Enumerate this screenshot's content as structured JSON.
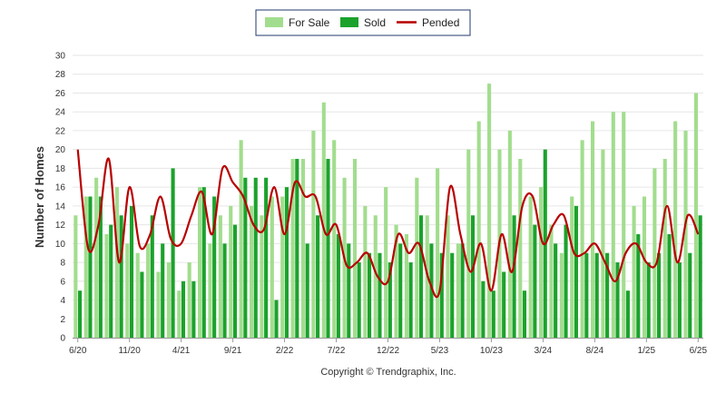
{
  "chart_data": {
    "type": "bar",
    "ylabel": "Number of Homes",
    "ylim": [
      0,
      30
    ],
    "yticks": [
      0,
      2,
      4,
      6,
      8,
      10,
      12,
      14,
      16,
      18,
      20,
      22,
      24,
      26,
      28,
      30
    ],
    "grid": true,
    "legend_placement": "top-center",
    "x_tick_labels": [
      "6/20",
      "11/20",
      "4/21",
      "9/21",
      "2/22",
      "7/22",
      "12/22",
      "5/23",
      "10/23",
      "3/24",
      "8/24",
      "1/25",
      "6/25"
    ],
    "x_tick_indices": [
      0,
      5,
      10,
      15,
      20,
      25,
      30,
      35,
      40,
      45,
      50,
      55,
      60
    ],
    "categories": [
      "6/20",
      "7/20",
      "8/20",
      "9/20",
      "10/20",
      "11/20",
      "12/20",
      "1/21",
      "2/21",
      "3/21",
      "4/21",
      "5/21",
      "6/21",
      "7/21",
      "8/21",
      "9/21",
      "10/21",
      "11/21",
      "12/21",
      "1/22",
      "2/22",
      "3/22",
      "4/22",
      "5/22",
      "6/22",
      "7/22",
      "8/22",
      "9/22",
      "10/22",
      "11/22",
      "12/22",
      "1/23",
      "2/23",
      "3/23",
      "4/23",
      "5/23",
      "6/23",
      "7/23",
      "8/23",
      "9/23",
      "10/23",
      "11/23",
      "12/23",
      "1/24",
      "2/24",
      "3/24",
      "4/24",
      "5/24",
      "6/24",
      "7/24",
      "8/24",
      "9/24",
      "10/24",
      "11/24",
      "12/24",
      "1/25",
      "2/25",
      "3/25",
      "4/25",
      "5/25",
      "6/25"
    ],
    "series": [
      {
        "name": "For Sale",
        "kind": "bar",
        "color": "#a2dd8e",
        "values": [
          13,
          15,
          17,
          11,
          16,
          10,
          9,
          10,
          7,
          8,
          5,
          8,
          16,
          10,
          13,
          14,
          21,
          14,
          13,
          15,
          15,
          19,
          19,
          22,
          25,
          21,
          17,
          19,
          14,
          13,
          16,
          12,
          11,
          17,
          13,
          18,
          13,
          10,
          20,
          23,
          27,
          20,
          22,
          19,
          15,
          16,
          12,
          9,
          15,
          21,
          23,
          20,
          24,
          24,
          14,
          15,
          18,
          19,
          23,
          22,
          26
        ]
      },
      {
        "name": "Sold",
        "kind": "bar",
        "color": "#1ba22c",
        "values": [
          5,
          15,
          15,
          12,
          13,
          14,
          7,
          13,
          10,
          18,
          6,
          6,
          16,
          15,
          10,
          12,
          17,
          17,
          17,
          4,
          16,
          19,
          10,
          13,
          19,
          11,
          10,
          8,
          9,
          9,
          8,
          10,
          8,
          13,
          10,
          9,
          9,
          10,
          13,
          6,
          5,
          7,
          13,
          5,
          12,
          20,
          10,
          12,
          14,
          9,
          9,
          9,
          8,
          5,
          11,
          8,
          9,
          11,
          8,
          9,
          13
        ]
      },
      {
        "name": "Pended",
        "kind": "line",
        "color": "#b80000",
        "values": [
          20,
          9.5,
          12,
          19,
          8,
          16,
          9.7,
          11,
          15,
          10.5,
          10,
          13,
          15.5,
          11,
          18,
          16.5,
          15,
          12,
          11.5,
          16,
          11,
          16.5,
          15,
          15,
          11,
          12,
          7.7,
          8,
          9,
          6.5,
          6,
          11,
          9,
          10,
          6,
          5,
          16,
          11,
          7,
          10,
          5,
          11,
          7,
          14,
          15,
          10,
          12,
          13,
          9,
          9,
          10,
          8,
          6,
          9,
          10,
          8,
          8,
          14,
          8,
          13,
          11
        ]
      }
    ]
  },
  "footer": {
    "copyright": "Copyright © Trendgraphix, Inc."
  }
}
